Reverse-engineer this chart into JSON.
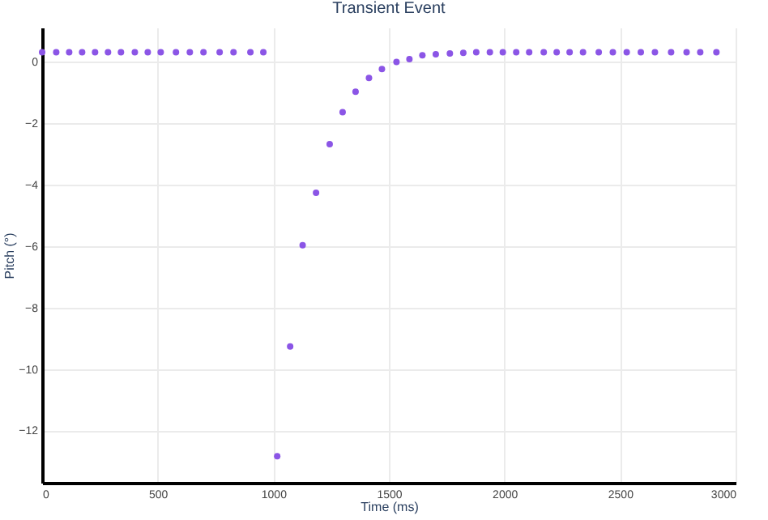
{
  "chart_data": {
    "type": "scatter",
    "title": "Transient Event",
    "xlabel": "Time (ms)",
    "ylabel": "Pitch (°)",
    "x": [
      0,
      61,
      117,
      173,
      229,
      285,
      341,
      401,
      457,
      513,
      579,
      639,
      698,
      768,
      828,
      901,
      957,
      1017,
      1073,
      1127,
      1185,
      1244,
      1300,
      1356,
      1414,
      1470,
      1533,
      1589,
      1645,
      1703,
      1764,
      1822,
      1878,
      1937,
      1993,
      2051,
      2107,
      2170,
      2226,
      2282,
      2340,
      2408,
      2469,
      2529,
      2590,
      2651,
      2721,
      2788,
      2847,
      2917
    ],
    "series": [
      {
        "color": "#8b55e6",
        "values": [
          0.3,
          0.3,
          0.3,
          0.3,
          0.3,
          0.3,
          0.3,
          0.3,
          0.3,
          0.3,
          0.3,
          0.3,
          0.3,
          0.3,
          0.3,
          0.3,
          0.3,
          -12.84,
          -9.27,
          -5.98,
          -4.27,
          -2.69,
          -1.65,
          -0.99,
          -0.54,
          -0.25,
          -0.02,
          0.07,
          0.2,
          0.23,
          0.26,
          0.28,
          0.3,
          0.3,
          0.3,
          0.3,
          0.3,
          0.3,
          0.3,
          0.3,
          0.3,
          0.3,
          0.3,
          0.3,
          0.3,
          0.3,
          0.3,
          0.3,
          0.3,
          0.3
        ]
      }
    ],
    "xlim": [
      0,
      3000
    ],
    "xticks": [
      0,
      500,
      1000,
      1500,
      2000,
      2500,
      3000
    ],
    "ylim": [
      -13.7,
      1.1
    ],
    "yticks": [
      -12,
      -10,
      -8,
      -6,
      -4,
      -2,
      0
    ],
    "grid": true,
    "marker": "circle"
  }
}
